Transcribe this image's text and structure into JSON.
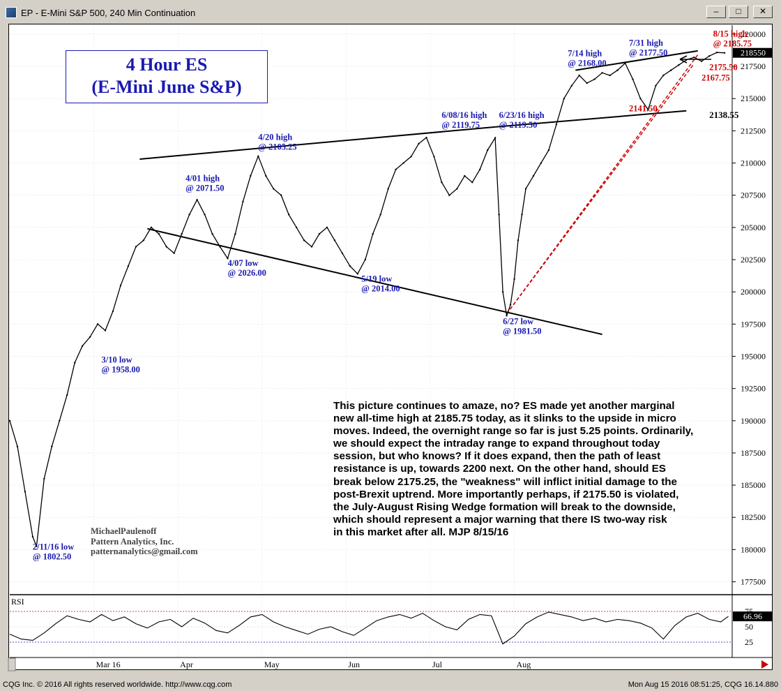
{
  "window": {
    "title": "EP - E-Mini S&P 500, 240 Min Continuation",
    "buttons": [
      "minimize",
      "maximize",
      "close"
    ]
  },
  "chart_data": {
    "type": "line",
    "title_box": [
      "4 Hour ES",
      "(E-Mini June S&P)"
    ],
    "price_axis": {
      "ticks": [
        177500,
        180000,
        182500,
        185000,
        187500,
        190000,
        192500,
        195000,
        197500,
        200000,
        202500,
        205000,
        207500,
        210000,
        212500,
        215000,
        217500,
        220000
      ],
      "range": [
        1765,
        2207
      ],
      "last_price_label": "218550",
      "last_price": 2185.5
    },
    "time_axis": {
      "labels": [
        "Mar 16",
        "Apr",
        "May",
        "Jun",
        "Jul",
        "Aug"
      ],
      "range_days": [
        0,
        189
      ]
    },
    "price_series": {
      "name": "EP",
      "x_days": [
        0,
        2,
        4,
        6,
        7,
        9,
        11,
        13,
        15,
        17,
        19,
        21,
        23,
        25,
        27,
        29,
        31,
        33,
        35,
        37,
        39,
        41,
        43,
        45,
        47,
        49,
        51,
        53,
        55,
        57,
        59,
        61,
        63,
        65,
        67,
        69,
        71,
        73,
        75,
        77,
        79,
        81,
        83,
        85,
        87,
        89,
        91,
        93,
        95,
        97,
        99,
        101,
        103,
        105,
        107,
        109,
        111,
        113,
        115,
        117,
        119,
        121,
        123,
        125,
        127,
        128,
        129,
        130,
        131,
        132,
        133,
        134,
        135,
        137,
        139,
        141,
        143,
        145,
        147,
        149,
        151,
        153,
        155,
        157,
        159,
        161,
        163,
        165,
        167,
        169,
        171,
        173,
        175,
        177,
        179,
        181,
        183,
        185,
        187
      ],
      "values": [
        1900,
        1880,
        1845,
        1810,
        1802.5,
        1855,
        1880,
        1900,
        1920,
        1945,
        1958,
        1965,
        1975,
        1970,
        1985,
        2005,
        2020,
        2035,
        2040,
        2050,
        2045,
        2035,
        2030,
        2045,
        2060,
        2071.5,
        2060,
        2045,
        2035,
        2026,
        2045,
        2070,
        2090,
        2105.25,
        2090,
        2080,
        2075,
        2060,
        2050,
        2040,
        2035,
        2045,
        2050,
        2040,
        2030,
        2020,
        2014,
        2025,
        2045,
        2060,
        2080,
        2095,
        2100,
        2105,
        2115,
        2119.75,
        2105,
        2085,
        2075,
        2080,
        2090,
        2085,
        2095,
        2110,
        2119.5,
        2060,
        2000,
        1981.5,
        1990,
        2010,
        2040,
        2060,
        2080,
        2090,
        2100,
        2110,
        2130,
        2150,
        2160,
        2168,
        2162,
        2165,
        2170,
        2168,
        2172,
        2177.5,
        2165,
        2150,
        2141.5,
        2160,
        2168,
        2172,
        2176,
        2180,
        2182,
        2179,
        2183,
        2185.75,
        2185.5
      ],
      "color": "#000000"
    },
    "trendlines": [
      {
        "style": "solid",
        "color": "#000000",
        "points": [
          [
            34,
            2103
          ],
          [
            127,
            2128
          ]
        ]
      },
      {
        "style": "solid",
        "color": "#000000",
        "points": [
          [
            127,
            2128
          ],
          [
            177,
            2140.5
          ]
        ]
      },
      {
        "style": "solid",
        "color": "#000000",
        "points": [
          [
            36,
            2049
          ],
          [
            155,
            1967
          ]
        ]
      },
      {
        "style": "solid",
        "color": "#000000",
        "points": [
          [
            148,
            2172
          ],
          [
            180,
            2187
          ]
        ]
      },
      {
        "style": "dashed",
        "color": "#cc0000",
        "points": [
          [
            130,
            1983
          ],
          [
            180,
            2184
          ]
        ]
      },
      {
        "style": "dashed",
        "color": "#cc0000",
        "points": [
          [
            130,
            1983
          ],
          [
            179,
            2177
          ]
        ]
      }
    ],
    "annotations": [
      {
        "lines": [
          "2/11/16 low",
          "@ 1802.50"
        ],
        "color": "#1a1ab0",
        "x": 6,
        "y": 1800
      },
      {
        "lines": [
          "3/10 low",
          "@ 1958.00"
        ],
        "color": "#1a1ab0",
        "x": 24,
        "y": 1945
      },
      {
        "lines": [
          "4/01 high",
          "@ 2071.50"
        ],
        "color": "#1a1ab0",
        "x": 46,
        "y": 2086
      },
      {
        "lines": [
          "4/07 low",
          "@ 2026.00"
        ],
        "color": "#1a1ab0",
        "x": 57,
        "y": 2020
      },
      {
        "lines": [
          "4/20 high",
          "@ 2105.25"
        ],
        "color": "#1a1ab0",
        "x": 65,
        "y": 2118
      },
      {
        "lines": [
          "5/19 low",
          "@ 2014.00"
        ],
        "color": "#1a1ab0",
        "x": 92,
        "y": 2008
      },
      {
        "lines": [
          "6/08/16 high",
          "@ 2119.75"
        ],
        "color": "#1a1ab0",
        "x": 113,
        "y": 2135
      },
      {
        "lines": [
          "6/23/16 high",
          "@ 2119.50"
        ],
        "color": "#1a1ab0",
        "x": 128,
        "y": 2135
      },
      {
        "lines": [
          "6/27 low",
          "@ 1981.50"
        ],
        "color": "#1a1ab0",
        "x": 129,
        "y": 1975
      },
      {
        "lines": [
          "7/14 high",
          "@ 2168.00"
        ],
        "color": "#1a1ab0",
        "x": 146,
        "y": 2183
      },
      {
        "lines": [
          "7/31 high",
          "@ 2177.50"
        ],
        "color": "#1a1ab0",
        "x": 162,
        "y": 2191
      },
      {
        "lines": [
          "8/15 high",
          "@ 2185.75"
        ],
        "color": "#cc0000",
        "x": 184,
        "y": 2198
      },
      {
        "lines": [
          "2175.50"
        ],
        "color": "#cc0000",
        "x": 183,
        "y": 2172
      },
      {
        "lines": [
          "2167.75"
        ],
        "color": "#cc0000",
        "x": 181,
        "y": 2164
      },
      {
        "lines": [
          "2141.50"
        ],
        "color": "#cc0000",
        "x": 162,
        "y": 2140
      },
      {
        "lines": [
          "2138.55"
        ],
        "color": "#000000",
        "x": 183,
        "y": 2135
      }
    ],
    "rsi": {
      "label": "RSI",
      "levels": [
        25,
        50,
        75
      ],
      "value_label": "66.96",
      "value": 66.96,
      "x_days": [
        0,
        3,
        6,
        9,
        12,
        15,
        18,
        21,
        24,
        27,
        30,
        33,
        36,
        39,
        42,
        45,
        48,
        51,
        54,
        57,
        60,
        63,
        66,
        69,
        72,
        75,
        78,
        81,
        84,
        87,
        90,
        93,
        96,
        99,
        102,
        105,
        108,
        111,
        114,
        117,
        120,
        123,
        126,
        129,
        132,
        135,
        138,
        141,
        144,
        147,
        150,
        153,
        156,
        159,
        162,
        165,
        168,
        171,
        174,
        177,
        180,
        183,
        186,
        188
      ],
      "values": [
        38,
        30,
        28,
        40,
        55,
        68,
        62,
        58,
        70,
        60,
        66,
        55,
        48,
        58,
        62,
        50,
        64,
        56,
        44,
        40,
        52,
        66,
        70,
        58,
        50,
        44,
        38,
        46,
        50,
        42,
        36,
        48,
        60,
        66,
        70,
        64,
        72,
        60,
        50,
        45,
        62,
        70,
        68,
        22,
        35,
        55,
        66,
        74,
        70,
        66,
        60,
        64,
        58,
        62,
        60,
        56,
        48,
        30,
        52,
        66,
        72,
        62,
        58,
        66.96
      ]
    }
  },
  "commentary": {
    "lines": [
      "This picture continues to amaze, no? ES made yet another marginal",
      "new all-time high at 2185.75 today, as it slinks to the upside in micro",
      "moves. Indeed, the overnight range so far is just 5.25 points. Ordinarily,",
      "we should expect the intraday range to expand throughout today",
      "session, but who knows? If it does expand, then the path of least",
      "resistance is up, towards 2200 next. On the other hand, should ES",
      "break below 2175.25, the \"weakness\" will inflict initial damage to the",
      "post-Brexit uptrend. More importantly perhaps, if 2175.50 is violated,",
      "the July-August Rising Wedge formation will break to the downside,",
      "which should represent a major warning that there IS two-way risk",
      "in this market after all.   MJP 8/15/16"
    ]
  },
  "credits": {
    "lines": [
      "MichaelPaulenoff",
      "Pattern Analytics, Inc.",
      "patternanalytics@gmail.com"
    ]
  },
  "footer": {
    "left": "CQG Inc. © 2016 All rights reserved worldwide. http://www.cqg.com",
    "right": "Mon Aug 15 2016 08:51:25, CQG 16.14.880"
  }
}
